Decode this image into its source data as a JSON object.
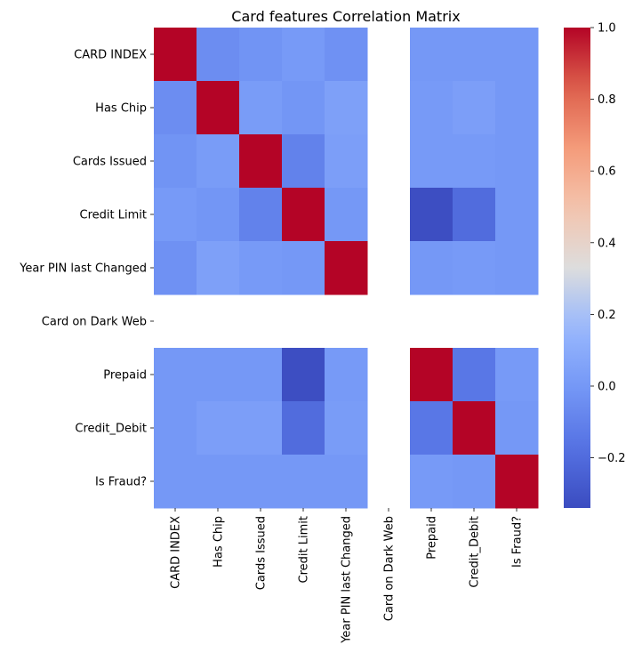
{
  "chart_data": {
    "type": "heatmap",
    "title": "Card features Correlation Matrix",
    "labels": [
      "CARD INDEX",
      "Has Chip",
      "Cards Issued",
      "Credit Limit",
      "Year PIN last Changed",
      "Card on Dark Web",
      "Prepaid",
      "Credit_Debit",
      "Is Fraud?"
    ],
    "colormap": "coolwarm",
    "vmin": -0.34,
    "vmax": 1.0,
    "colorbar_ticks": [
      1.0,
      0.8,
      0.6,
      0.4,
      0.2,
      0.0,
      -0.2
    ],
    "colorbar_tick_labels": [
      "1.0",
      "0.8",
      "0.6",
      "0.4",
      "0.2",
      "0.0",
      "−0.2"
    ],
    "values": [
      [
        1.0,
        -0.05,
        -0.02,
        0.01,
        -0.03,
        null,
        0.0,
        0.0,
        0.0
      ],
      [
        -0.05,
        1.0,
        0.02,
        -0.01,
        0.04,
        null,
        0.01,
        0.03,
        0.0
      ],
      [
        -0.02,
        0.02,
        1.0,
        -0.1,
        0.03,
        null,
        0.01,
        0.01,
        0.0
      ],
      [
        0.01,
        -0.01,
        -0.1,
        1.0,
        0.0,
        null,
        -0.33,
        -0.2,
        0.0
      ],
      [
        -0.03,
        0.04,
        0.01,
        0.0,
        1.0,
        null,
        0.0,
        0.01,
        0.0
      ],
      [
        null,
        null,
        null,
        null,
        null,
        null,
        null,
        null,
        null
      ],
      [
        0.0,
        0.0,
        0.0,
        -0.33,
        0.01,
        null,
        1.0,
        -0.15,
        0.01
      ],
      [
        0.0,
        0.03,
        0.03,
        -0.2,
        0.02,
        null,
        -0.15,
        1.0,
        0.0
      ],
      [
        0.0,
        0.0,
        0.0,
        0.0,
        0.0,
        null,
        0.01,
        0.0,
        1.0
      ]
    ]
  }
}
